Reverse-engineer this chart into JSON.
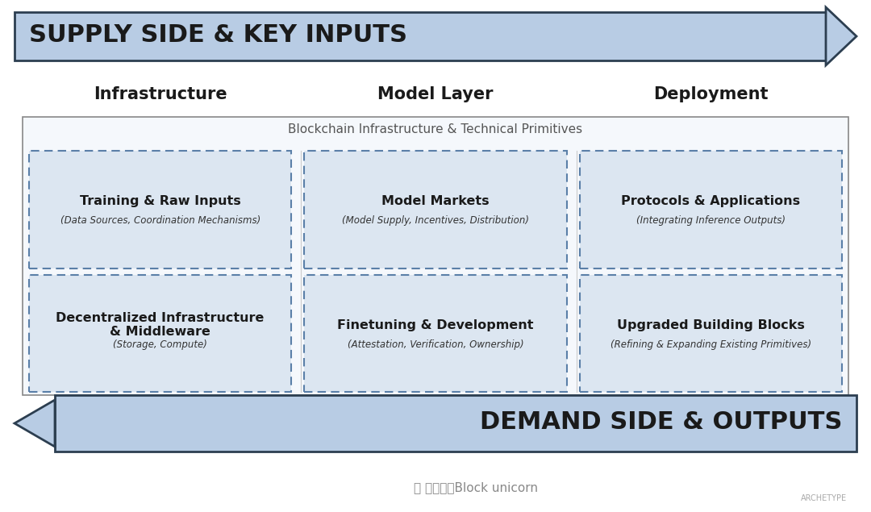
{
  "bg_color": "#ffffff",
  "supply_title": "SUPPLY SIDE & KEY INPUTS",
  "demand_title": "DEMAND SIDE & OUTPUTS",
  "col_headers": [
    "Infrastructure",
    "Model Layer",
    "Deployment"
  ],
  "blockchain_label": "Blockchain Infrastructure & Technical Primitives",
  "cells": [
    [
      {
        "title": "Training & Raw Inputs",
        "sub": "(Data Sources, Coordination Mechanisms)"
      },
      {
        "title": "Model Markets",
        "sub": "(Model Supply, Incentives, Distribution)"
      },
      {
        "title": "Protocols & Applications",
        "sub": "(Integrating Inference Outputs)"
      }
    ],
    [
      {
        "title": "Decentralized Infrastructure\n& Middleware",
        "sub": "(Storage, Compute)"
      },
      {
        "title": "Finetuning & Development",
        "sub": "(Attestation, Verification, Ownership)"
      },
      {
        "title": "Upgraded Building Blocks",
        "sub": "(Refining & Expanding Existing Primitives)"
      }
    ]
  ],
  "cell_bg": "#dce6f1",
  "cell_border": "#5a7fa8",
  "outer_border": "#2c3e50",
  "arrow_fill": "#b8cce4",
  "arrow_edge": "#5a7fa8",
  "footer_text": "公众号・Block unicorn",
  "archetype_text": "ARCHETYPE",
  "watermark_icon": "📷"
}
